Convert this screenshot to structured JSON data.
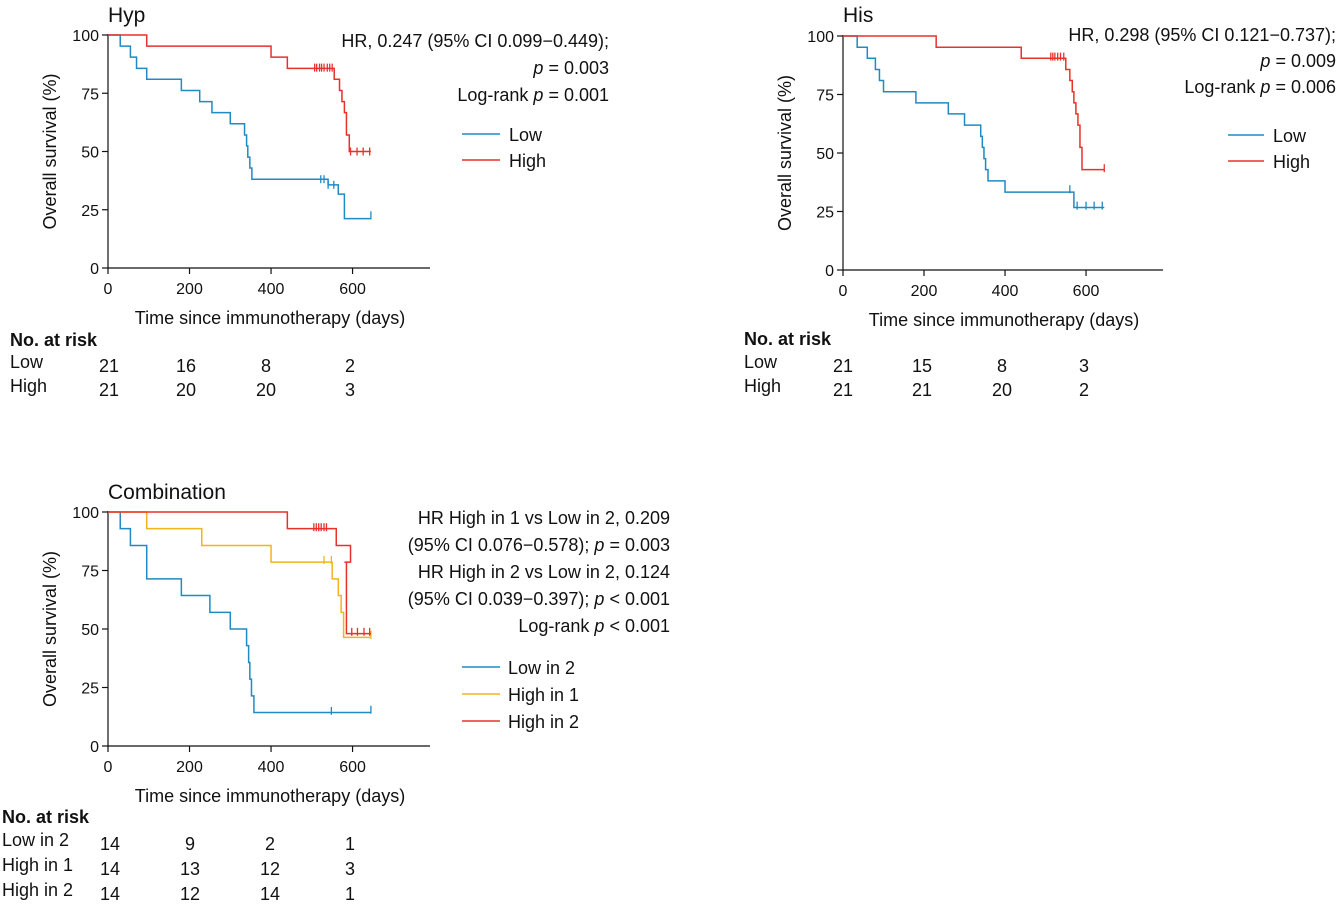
{
  "chart_data": [
    {
      "type": "line",
      "title": "Hyp",
      "xlabel": "Time since immunotherapy (days)",
      "ylabel": "Overall survival (%)",
      "xlim": [
        0,
        790
      ],
      "ylim": [
        0,
        100
      ],
      "xticks": [
        "0",
        "200",
        "400",
        "600"
      ],
      "yticks": [
        "0",
        "25",
        "50",
        "75",
        "100"
      ],
      "stats": [
        {
          "pre": "HR, 0.247 (95% CI 0.099−0.449);",
          "p": "",
          "post": ""
        },
        {
          "pre": "",
          "p": "p",
          "post": " = 0.003"
        },
        {
          "pre": "Log-rank ",
          "p": "p",
          "post": " = 0.001"
        }
      ],
      "series": [
        {
          "name": "Low",
          "color": "#1f8ac4",
          "steps": [
            [
              0,
              100
            ],
            [
              30,
              95.2
            ],
            [
              55,
              90.5
            ],
            [
              70,
              85.7
            ],
            [
              95,
              81
            ],
            [
              180,
              76.2
            ],
            [
              225,
              71.4
            ],
            [
              255,
              66.7
            ],
            [
              300,
              61.9
            ],
            [
              335,
              57.1
            ],
            [
              340,
              52.4
            ],
            [
              343,
              47.6
            ],
            [
              348,
              42.9
            ],
            [
              353,
              38.1
            ],
            [
              540,
              35.7
            ],
            [
              565,
              31.7
            ],
            [
              580,
              21.2
            ],
            [
              645,
              21.2
            ]
          ],
          "censor": [
            [
              522,
              38.1
            ],
            [
              530,
              38.1
            ],
            [
              540,
              35.7
            ],
            [
              554,
              35.7
            ],
            [
              645,
              22.6
            ]
          ]
        },
        {
          "name": "High",
          "color": "#e8312a",
          "steps": [
            [
              0,
              100
            ],
            [
              95,
              95.2
            ],
            [
              400,
              90.5
            ],
            [
              440,
              85.7
            ],
            [
              555,
              81
            ],
            [
              568,
              76.2
            ],
            [
              574,
              71.4
            ],
            [
              580,
              66.7
            ],
            [
              585,
              57.1
            ],
            [
              592,
              50
            ],
            [
              645,
              50
            ]
          ],
          "censor": [
            [
              507,
              86
            ],
            [
              512,
              86
            ],
            [
              519,
              86
            ],
            [
              524,
              86
            ],
            [
              530,
              86
            ],
            [
              538,
              86
            ],
            [
              544,
              86
            ],
            [
              550,
              86
            ],
            [
              595,
              50
            ],
            [
              611,
              50
            ],
            [
              626,
              50
            ],
            [
              642,
              50
            ]
          ]
        }
      ],
      "risk": {
        "header": "No. at risk",
        "rows": [
          {
            "label": "Low",
            "values": [
              "21",
              "16",
              "8",
              "2"
            ]
          },
          {
            "label": "High",
            "values": [
              "21",
              "20",
              "20",
              "3"
            ]
          }
        ]
      }
    },
    {
      "type": "line",
      "title": "His",
      "xlabel": "Time since immunotherapy (days)",
      "ylabel": "Overall survival (%)",
      "xlim": [
        0,
        790
      ],
      "ylim": [
        0,
        100
      ],
      "xticks": [
        "0",
        "200",
        "400",
        "600"
      ],
      "yticks": [
        "0",
        "25",
        "50",
        "75",
        "100"
      ],
      "stats": [
        {
          "pre": "HR, 0.298 (95% CI 0.121−0.737);",
          "p": "",
          "post": ""
        },
        {
          "pre": "",
          "p": "p",
          "post": " = 0.009"
        },
        {
          "pre": "Log-rank ",
          "p": "p",
          "post": " = 0.006"
        }
      ],
      "series": [
        {
          "name": "Low",
          "color": "#1f8ac4",
          "steps": [
            [
              0,
              100
            ],
            [
              35,
              95.2
            ],
            [
              60,
              90.5
            ],
            [
              80,
              85.7
            ],
            [
              90,
              81
            ],
            [
              100,
              76.2
            ],
            [
              180,
              71.4
            ],
            [
              260,
              66.7
            ],
            [
              300,
              61.9
            ],
            [
              340,
              57.1
            ],
            [
              344,
              52.4
            ],
            [
              348,
              47.6
            ],
            [
              352,
              42.9
            ],
            [
              358,
              38.1
            ],
            [
              400,
              33.3
            ],
            [
              570,
              26.7
            ],
            [
              645,
              26.7
            ]
          ],
          "censor": [
            [
              560,
              34.5
            ],
            [
              578,
              27.5
            ],
            [
              600,
              27.5
            ],
            [
              620,
              27.5
            ],
            [
              640,
              27.5
            ]
          ]
        },
        {
          "name": "High",
          "color": "#e8312a",
          "steps": [
            [
              0,
              100
            ],
            [
              230,
              95.2
            ],
            [
              440,
              90.5
            ],
            [
              550,
              85.7
            ],
            [
              560,
              81
            ],
            [
              566,
              76.2
            ],
            [
              570,
              71.4
            ],
            [
              575,
              66.7
            ],
            [
              580,
              61.9
            ],
            [
              585,
              52.4
            ],
            [
              590,
              42.9
            ],
            [
              645,
              42.9
            ]
          ],
          "censor": [
            [
              513,
              91.2
            ],
            [
              518,
              91.2
            ],
            [
              523,
              91.2
            ],
            [
              530,
              91.2
            ],
            [
              537,
              91.2
            ],
            [
              545,
              91.2
            ],
            [
              645,
              43.5
            ]
          ]
        }
      ],
      "risk": {
        "header": "No. at risk",
        "rows": [
          {
            "label": "Low",
            "values": [
              "21",
              "15",
              "8",
              "3"
            ]
          },
          {
            "label": "High",
            "values": [
              "21",
              "21",
              "20",
              "2"
            ]
          }
        ]
      }
    },
    {
      "type": "line",
      "title": "Combination",
      "xlabel": "Time since immunotherapy (days)",
      "ylabel": "Overall survival (%)",
      "xlim": [
        0,
        790
      ],
      "ylim": [
        0,
        100
      ],
      "xticks": [
        "0",
        "200",
        "400",
        "600"
      ],
      "yticks": [
        "0",
        "25",
        "50",
        "75",
        "100"
      ],
      "stats": [
        {
          "pre": "HR High in 1 vs Low in 2, 0.209",
          "p": "",
          "post": ""
        },
        {
          "pre": "(95% CI 0.076−0.578); ",
          "p": "p",
          "post": " = 0.003"
        },
        {
          "pre": "HR High in 2 vs Low in 2, 0.124",
          "p": "",
          "post": ""
        },
        {
          "pre": "(95% CI 0.039−0.397); ",
          "p": "p",
          "post": " < 0.001"
        },
        {
          "pre": "Log-rank ",
          "p": "p",
          "post": " < 0.001"
        }
      ],
      "series": [
        {
          "name": "Low in 2",
          "color": "#1f8ac4",
          "steps": [
            [
              0,
              100
            ],
            [
              30,
              92.9
            ],
            [
              55,
              85.7
            ],
            [
              95,
              71.4
            ],
            [
              180,
              64.3
            ],
            [
              250,
              57.1
            ],
            [
              300,
              50
            ],
            [
              340,
              42.9
            ],
            [
              345,
              35.7
            ],
            [
              348,
              28.6
            ],
            [
              352,
              21.4
            ],
            [
              358,
              14.3
            ],
            [
              645,
              14.3
            ]
          ],
          "censor": [
            [
              548,
              15
            ],
            [
              645,
              15.5
            ]
          ]
        },
        {
          "name": "High in 1",
          "color": "#f2b41c",
          "steps": [
            [
              0,
              100
            ],
            [
              95,
              92.9
            ],
            [
              230,
              85.7
            ],
            [
              400,
              78.6
            ],
            [
              550,
              71.4
            ],
            [
              565,
              64.3
            ],
            [
              572,
              57.1
            ],
            [
              578,
              46.4
            ],
            [
              645,
              46.4
            ]
          ],
          "censor": [
            [
              530,
              79.5
            ],
            [
              548,
              79.5
            ],
            [
              645,
              47.5
            ]
          ]
        },
        {
          "name": "High in 2",
          "color": "#e8312a",
          "steps": [
            [
              0,
              100
            ],
            [
              440,
              92.9
            ],
            [
              560,
              85.7
            ],
            [
              595,
              78.6
            ],
            [
              580,
              78.6
            ],
            [
              585,
              48
            ],
            [
              645,
              48
            ]
          ],
          "censor": [
            [
              505,
              93.5
            ],
            [
              511,
              93.5
            ],
            [
              517,
              93.5
            ],
            [
              523,
              93.5
            ],
            [
              530,
              93.5
            ],
            [
              536,
              93.5
            ],
            [
              598,
              48.8
            ],
            [
              612,
              48.8
            ],
            [
              628,
              48.8
            ],
            [
              642,
              48.8
            ]
          ]
        }
      ],
      "risk": {
        "header": "No. at risk",
        "rows": [
          {
            "label": "Low in 2",
            "values": [
              "14",
              "9",
              "2",
              "1"
            ]
          },
          {
            "label": "High in 1",
            "values": [
              "14",
              "13",
              "12",
              "3"
            ]
          },
          {
            "label": "High in 2",
            "values": [
              "14",
              "12",
              "14",
              "1"
            ]
          }
        ]
      }
    }
  ]
}
